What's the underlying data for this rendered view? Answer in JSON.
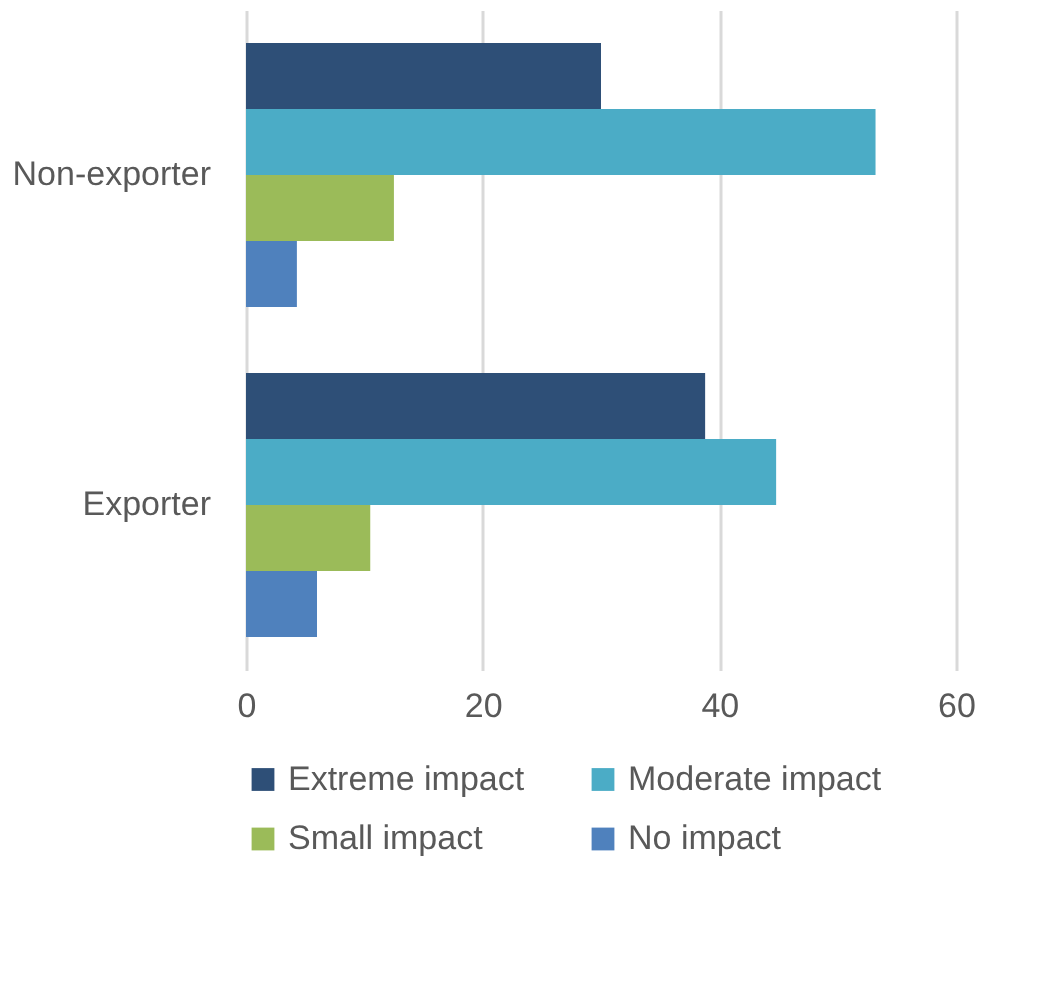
{
  "chart_data": {
    "type": "bar",
    "orientation": "horizontal",
    "categories": [
      "Non-exporter",
      "Exporter"
    ],
    "series": [
      {
        "name": "Extreme impact",
        "color": "#2e4f77",
        "values": [
          30,
          38.8
        ]
      },
      {
        "name": "Moderate impact",
        "color": "#4bacc6",
        "values": [
          53.2,
          44.8
        ]
      },
      {
        "name": "Small impact",
        "color": "#9bbb59",
        "values": [
          12.5,
          10.5
        ]
      },
      {
        "name": "No impact",
        "color": "#4f81bd",
        "values": [
          4.3,
          6
        ]
      }
    ],
    "xlim": [
      0,
      60
    ],
    "xticks": [
      0,
      20,
      40,
      60
    ],
    "grid": "x",
    "legend": "bottom"
  }
}
